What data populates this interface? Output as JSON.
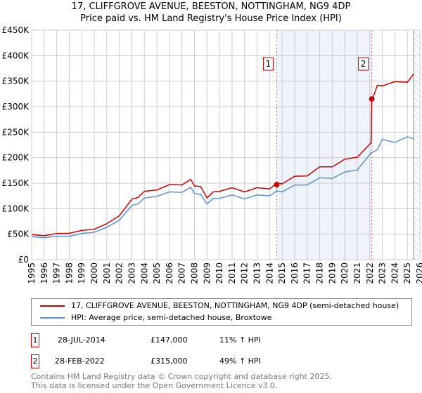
{
  "chart_data": {
    "type": "line",
    "title": "17, CLIFFGROVE AVENUE, BEESTON, NOTTINGHAM, NG9 4DP",
    "subtitle": "Price paid vs. HM Land Registry's House Price Index (HPI)",
    "xlim": [
      1995,
      2026
    ],
    "ylim": [
      0,
      450000
    ],
    "yticks": [
      "£0",
      "£50K",
      "£100K",
      "£150K",
      "£200K",
      "£250K",
      "£300K",
      "£350K",
      "£400K",
      "£450K"
    ],
    "xticks": [
      "1995",
      "1996",
      "1997",
      "1998",
      "1999",
      "2000",
      "2001",
      "2002",
      "2003",
      "2004",
      "2005",
      "2006",
      "2007",
      "2008",
      "2009",
      "2010",
      "2011",
      "2012",
      "2013",
      "2014",
      "2015",
      "2016",
      "2017",
      "2018",
      "2019",
      "2020",
      "2021",
      "2022",
      "2023",
      "2024",
      "2025",
      "2026"
    ],
    "series": [
      {
        "name": "17, CLIFFGROVE AVENUE, BEESTON, NOTTINGHAM, NG9 4DP (semi-detached house)",
        "color": "#cc0000",
        "x": [
          1995,
          1996,
          1997,
          1998,
          1999,
          2000,
          2001,
          2002,
          2003,
          2003.5,
          2004,
          2005,
          2006,
          2007,
          2007.7,
          2008,
          2008.5,
          2009,
          2009.5,
          2010,
          2011,
          2012,
          2013,
          2014,
          2014.57,
          2015,
          2016,
          2017,
          2018,
          2019,
          2020,
          2021,
          2022.1,
          2022.16,
          2022.6,
          2023,
          2024,
          2025,
          2025.5
        ],
        "y": [
          48000,
          48000,
          50000,
          53000,
          56000,
          61000,
          69000,
          88000,
          116000,
          125000,
          131000,
          140000,
          144000,
          150000,
          154000,
          148000,
          140000,
          124000,
          130000,
          137000,
          138000,
          136000,
          138000,
          142000,
          147000,
          152000,
          160000,
          168000,
          178000,
          186000,
          193000,
          205000,
          225000,
          315000,
          338000,
          345000,
          345000,
          352000,
          360000
        ]
      },
      {
        "name": "HPI: Average price, semi-detached house, Broxtowe",
        "color": "#5b8fd0",
        "x": [
          1995,
          1996,
          1997,
          1998,
          1999,
          2000,
          2001,
          2002,
          2003,
          2003.5,
          2004,
          2005,
          2006,
          2007,
          2007.7,
          2008,
          2008.5,
          2009,
          2009.5,
          2010,
          2011,
          2012,
          2013,
          2014,
          2014.57,
          2015,
          2016,
          2017,
          2018,
          2019,
          2020,
          2021,
          2022.1,
          2022.6,
          2023,
          2024,
          2025,
          2025.5
        ],
        "y": [
          44000,
          44000,
          45000,
          47000,
          50000,
          55000,
          62000,
          79000,
          104000,
          112000,
          118000,
          127000,
          130000,
          135000,
          139000,
          133000,
          125000,
          112000,
          117000,
          123000,
          124000,
          122000,
          124000,
          128000,
          132000,
          136000,
          143000,
          150000,
          157000,
          163000,
          168000,
          180000,
          205000,
          220000,
          232000,
          234000,
          237000,
          241000
        ]
      }
    ],
    "transactions": [
      {
        "id": "1",
        "date": "28-JUL-2014",
        "x": 2014.57,
        "price": "£147,000",
        "value": 147000,
        "hpi": "11% ↑ HPI"
      },
      {
        "id": "2",
        "date": "28-FEB-2022",
        "x": 2022.16,
        "price": "£315,000",
        "value": 315000,
        "hpi": "49% ↑ HPI"
      }
    ],
    "shaded_range": [
      2014.57,
      2022.16
    ],
    "hatched_from": 2025.5,
    "legend_position": "bottom"
  },
  "footer": {
    "line1": "Contains HM Land Registry data © Crown copyright and database right 2025.",
    "line2": "This data is licensed under the Open Government Licence v3.0."
  }
}
